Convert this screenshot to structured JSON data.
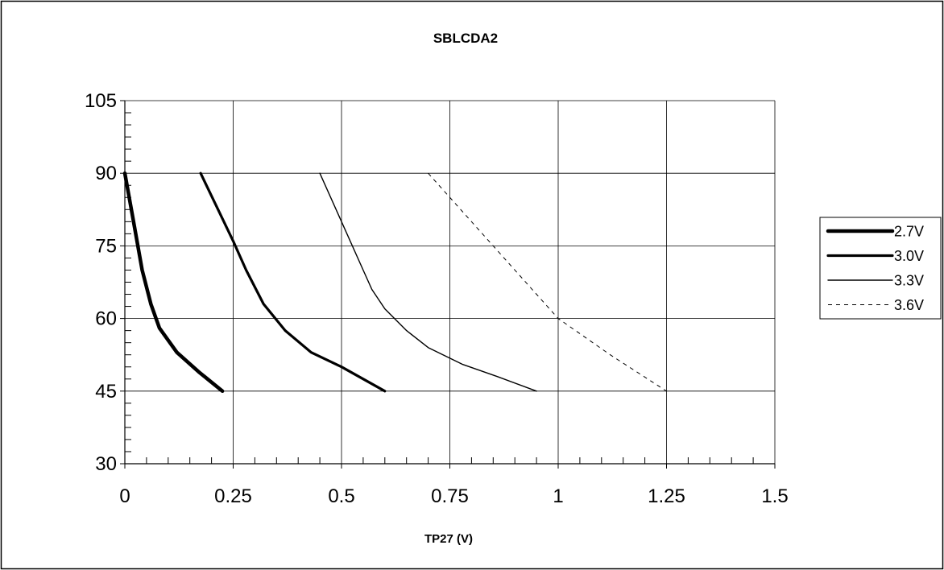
{
  "chart_data": {
    "type": "line",
    "title": "SBLCDA2",
    "xlabel": "TP27 (V)",
    "ylabel": "",
    "xlim": [
      0,
      1.5
    ],
    "ylim": [
      30,
      105
    ],
    "xticks": [
      0,
      0.25,
      0.5,
      0.75,
      1,
      1.25,
      1.5
    ],
    "xtick_labels": [
      "0",
      "0.25",
      "0.5",
      "0.75",
      "1",
      "1.25",
      "1.5"
    ],
    "yticks": [
      30,
      45,
      60,
      75,
      90,
      105
    ],
    "ytick_labels": [
      "30",
      "45",
      "60",
      "75",
      "90",
      "105"
    ],
    "grid": true,
    "legend_position": "right",
    "series": [
      {
        "name": "2.7V",
        "style": "solid",
        "weight": "heavy",
        "points": [
          [
            0.0,
            90
          ],
          [
            0.02,
            80
          ],
          [
            0.04,
            70
          ],
          [
            0.06,
            63
          ],
          [
            0.08,
            58
          ],
          [
            0.12,
            53
          ],
          [
            0.17,
            49
          ],
          [
            0.225,
            45
          ]
        ]
      },
      {
        "name": "3.0V",
        "style": "solid",
        "weight": "medium",
        "points": [
          [
            0.175,
            90
          ],
          [
            0.25,
            76
          ],
          [
            0.28,
            70
          ],
          [
            0.32,
            63
          ],
          [
            0.37,
            57.5
          ],
          [
            0.43,
            53
          ],
          [
            0.5,
            50
          ],
          [
            0.6,
            45
          ]
        ]
      },
      {
        "name": "3.3V",
        "style": "solid",
        "weight": "thin",
        "points": [
          [
            0.45,
            90
          ],
          [
            0.5,
            80
          ],
          [
            0.55,
            70
          ],
          [
            0.57,
            66
          ],
          [
            0.6,
            62
          ],
          [
            0.65,
            57.5
          ],
          [
            0.7,
            54
          ],
          [
            0.78,
            50.5
          ],
          [
            0.86,
            48
          ],
          [
            0.95,
            45
          ]
        ]
      },
      {
        "name": "3.6V",
        "style": "dashed",
        "weight": "thin",
        "points": [
          [
            0.7,
            90
          ],
          [
            0.85,
            75
          ],
          [
            1.0,
            60
          ],
          [
            1.12,
            52.5
          ],
          [
            1.25,
            45
          ]
        ]
      }
    ]
  }
}
